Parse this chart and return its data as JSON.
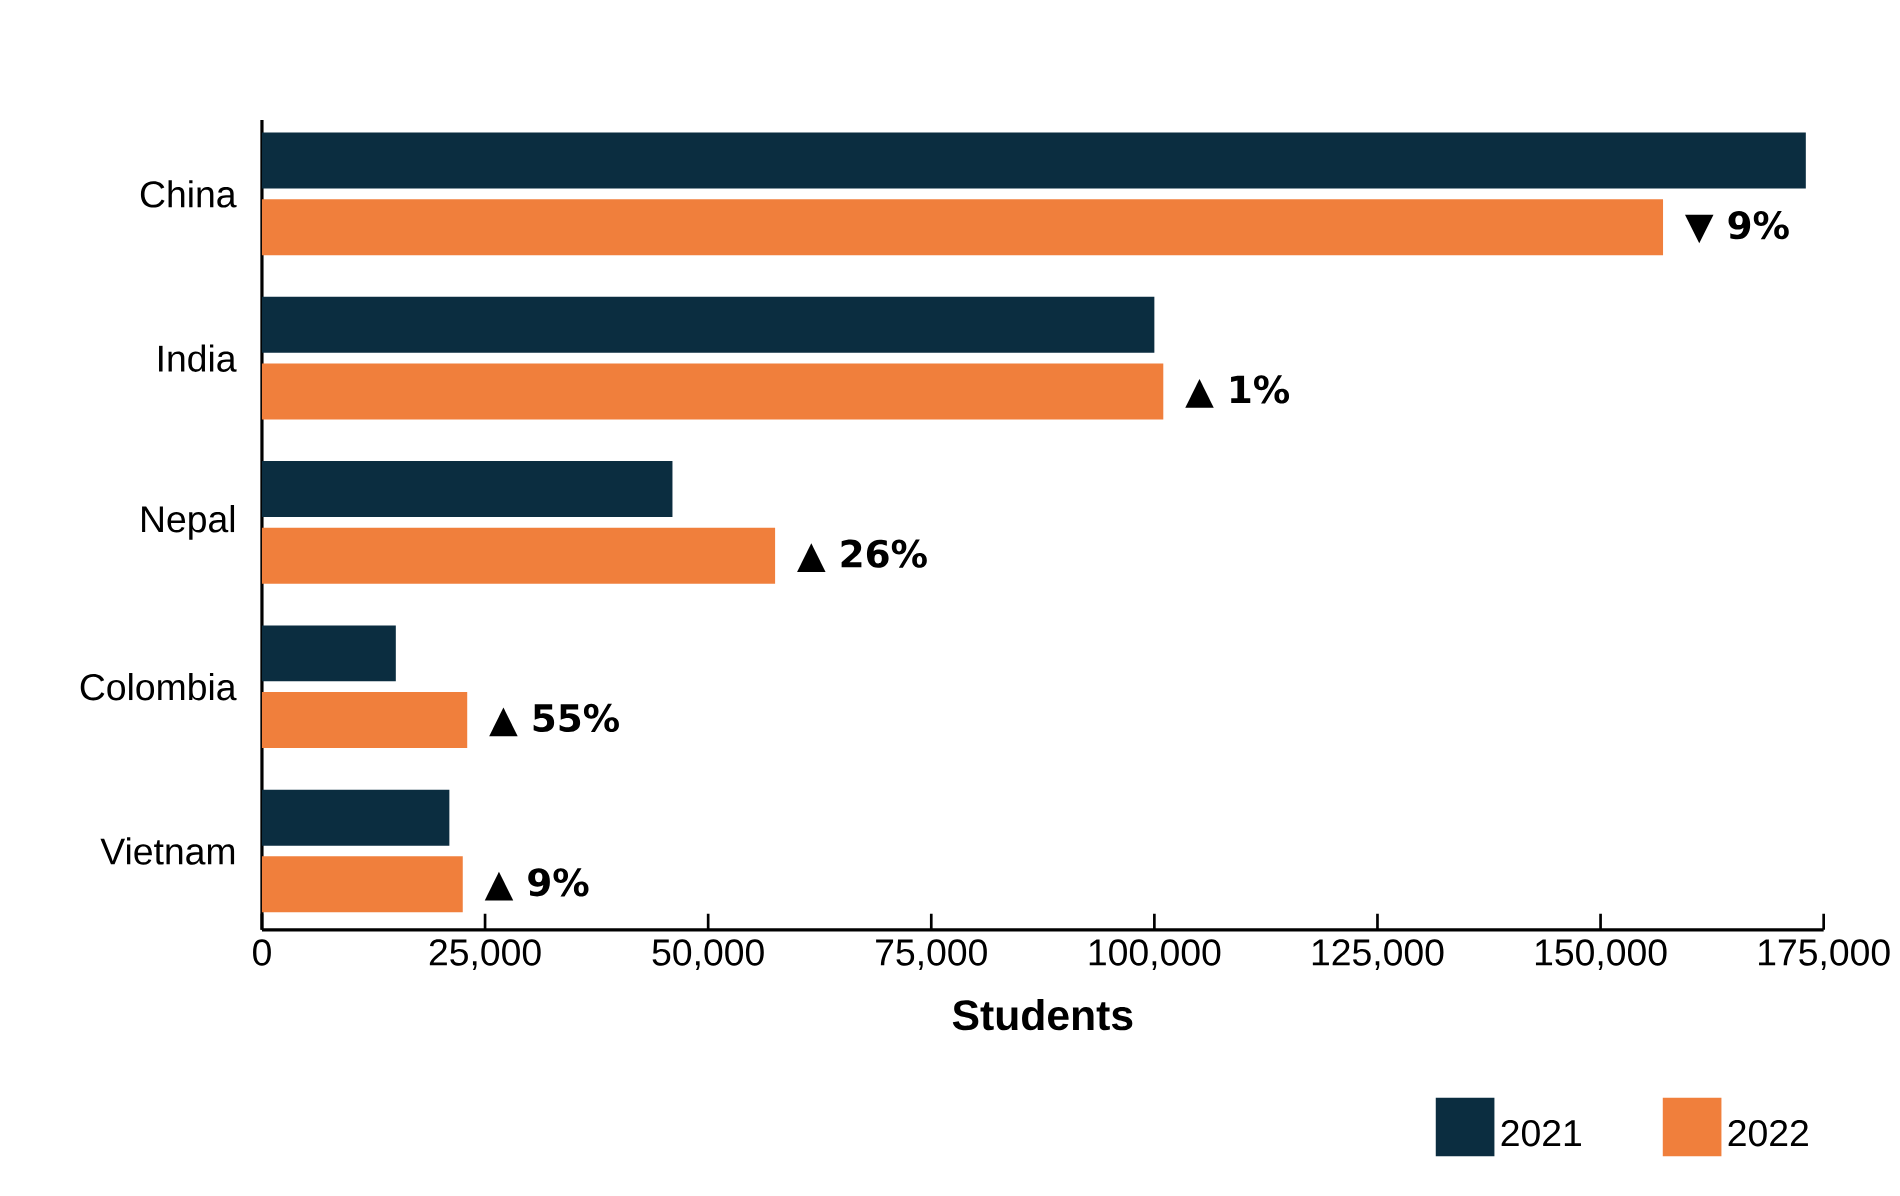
{
  "chart_data": {
    "type": "bar",
    "orientation": "horizontal",
    "xlabel": "Students",
    "categories": [
      "China",
      "India",
      "Nepal",
      "Colombia",
      "Vietnam"
    ],
    "series": [
      {
        "name": "2021",
        "color": "#0b2d40",
        "values": [
          173000,
          100000,
          46000,
          15000,
          21000
        ]
      },
      {
        "name": "2022",
        "color": "#f07f3c",
        "values": [
          157000,
          101000,
          57500,
          23000,
          22500
        ]
      }
    ],
    "xlim": [
      0,
      175000
    ],
    "xticks": [
      0,
      {
        "value": 25000,
        "label": "25,000"
      },
      {
        "value": 50000,
        "label": "50,000"
      },
      {
        "value": 75000,
        "label": "75,000"
      },
      {
        "value": 100000,
        "label": "100,000"
      },
      {
        "value": 125000,
        "label": "125,000"
      },
      {
        "value": 150000,
        "label": "150,000"
      },
      {
        "value": 175000,
        "label": "175,000"
      }
    ],
    "annotations": [
      {
        "text": "▼ 9%",
        "x": 157000,
        "y": "China"
      },
      {
        "text": "▲ 1%",
        "x": 101000,
        "y": "India"
      },
      {
        "text": "▲ 26%",
        "x": 57500,
        "y": "Nepal"
      },
      {
        "text": "▲ 55%",
        "x": 23000,
        "y": "Colombia"
      },
      {
        "text": "▲ 9%",
        "x": 22500,
        "y": "Vietnam"
      }
    ],
    "grid": false,
    "legend": "bottom right"
  }
}
